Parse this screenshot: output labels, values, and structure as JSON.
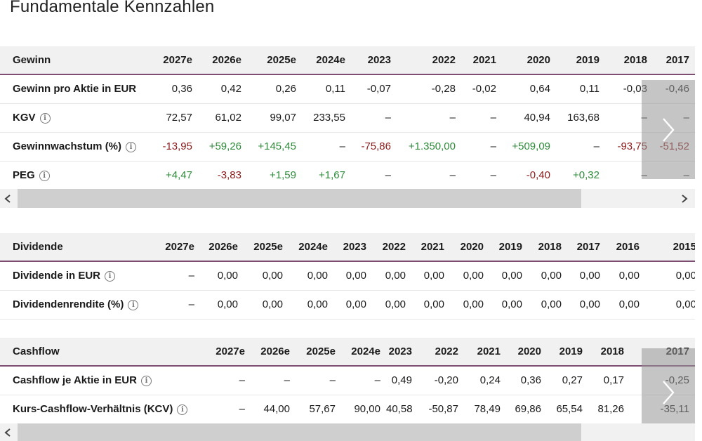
{
  "page": {
    "title": "Fundamentale Kennzahlen"
  },
  "gewinn": {
    "header": [
      "Gewinn",
      "2027e",
      "2026e",
      "2025e",
      "2024e",
      "2023",
      "2022",
      "2021",
      "2020",
      "2019",
      "2018",
      "2017"
    ],
    "rows": [
      {
        "label": "Gewinn pro Aktie in EUR",
        "info": false,
        "cells": [
          [
            "0,36",
            "neu"
          ],
          [
            "0,42",
            "neu"
          ],
          [
            "0,26",
            "neu"
          ],
          [
            "0,11",
            "neu"
          ],
          [
            "-0,07",
            "neu"
          ],
          [
            "-0,28",
            "neu"
          ],
          [
            "-0,02",
            "neu"
          ],
          [
            "0,64",
            "neu"
          ],
          [
            "0,11",
            "neu"
          ],
          [
            "-0,03",
            "neu"
          ],
          [
            "-0,46",
            "neu"
          ]
        ]
      },
      {
        "label": "KGV",
        "info": true,
        "cells": [
          [
            "72,57",
            "neu"
          ],
          [
            "61,02",
            "neu"
          ],
          [
            "99,07",
            "neu"
          ],
          [
            "233,55",
            "neu"
          ],
          [
            "–",
            "neu"
          ],
          [
            "–",
            "neu"
          ],
          [
            "–",
            "neu"
          ],
          [
            "40,94",
            "neu"
          ],
          [
            "163,68",
            "neu"
          ],
          [
            "–",
            "neu"
          ],
          [
            "–",
            "neu"
          ]
        ]
      },
      {
        "label": "Gewinnwachstum (%)",
        "info": true,
        "cells": [
          [
            "-13,95",
            "neg"
          ],
          [
            "+59,26",
            "pos"
          ],
          [
            "+145,45",
            "pos"
          ],
          [
            "–",
            "neu"
          ],
          [
            "-75,86",
            "neg"
          ],
          [
            "+1.350,00",
            "pos"
          ],
          [
            "–",
            "neu"
          ],
          [
            "+509,09",
            "pos"
          ],
          [
            "–",
            "neu"
          ],
          [
            "-93,75",
            "neg"
          ],
          [
            "-51,52",
            "neg"
          ]
        ]
      },
      {
        "label": "PEG",
        "info": true,
        "cells": [
          [
            "+4,47",
            "pos"
          ],
          [
            "-3,83",
            "neg"
          ],
          [
            "+1,59",
            "pos"
          ],
          [
            "+1,67",
            "pos"
          ],
          [
            "–",
            "neu"
          ],
          [
            "–",
            "neu"
          ],
          [
            "–",
            "neu"
          ],
          [
            "-0,40",
            "neg"
          ],
          [
            "+0,32",
            "pos"
          ],
          [
            "–",
            "neu"
          ],
          [
            "–",
            "neu"
          ]
        ]
      }
    ]
  },
  "dividende": {
    "header": [
      "Dividende",
      "2027e",
      "2026e",
      "2025e",
      "2024e",
      "2023",
      "2022",
      "2021",
      "2020",
      "2019",
      "2018",
      "2017",
      "2016",
      "2015"
    ],
    "rows": [
      {
        "label": "Dividende in EUR",
        "info": true,
        "cells": [
          [
            "–",
            "neu"
          ],
          [
            "0,00",
            "neu"
          ],
          [
            "0,00",
            "neu"
          ],
          [
            "0,00",
            "neu"
          ],
          [
            "0,00",
            "neu"
          ],
          [
            "0,00",
            "neu"
          ],
          [
            "0,00",
            "neu"
          ],
          [
            "0,00",
            "neu"
          ],
          [
            "0,00",
            "neu"
          ],
          [
            "0,00",
            "neu"
          ],
          [
            "0,00",
            "neu"
          ],
          [
            "0,00",
            "neu"
          ],
          [
            "0,00",
            "neu"
          ]
        ]
      },
      {
        "label": "Dividendenrendite (%)",
        "info": true,
        "cells": [
          [
            "–",
            "neu"
          ],
          [
            "0,00",
            "neu"
          ],
          [
            "0,00",
            "neu"
          ],
          [
            "0,00",
            "neu"
          ],
          [
            "0,00",
            "neu"
          ],
          [
            "0,00",
            "neu"
          ],
          [
            "0,00",
            "neu"
          ],
          [
            "0,00",
            "neu"
          ],
          [
            "0,00",
            "neu"
          ],
          [
            "0,00",
            "neu"
          ],
          [
            "0,00",
            "neu"
          ],
          [
            "0,00",
            "neu"
          ],
          [
            "0,00",
            "neu"
          ]
        ]
      }
    ]
  },
  "cashflow": {
    "header": [
      "Cashflow",
      "2027e",
      "2026e",
      "2025e",
      "2024e",
      "2023",
      "2022",
      "2021",
      "2020",
      "2019",
      "2018",
      "2017"
    ],
    "rows": [
      {
        "label": "Cashflow je Aktie in EUR",
        "info": true,
        "cells": [
          [
            "–",
            "neu"
          ],
          [
            "–",
            "neu"
          ],
          [
            "–",
            "neu"
          ],
          [
            "–",
            "neu"
          ],
          [
            "0,49",
            "neu"
          ],
          [
            "-0,20",
            "neu"
          ],
          [
            "0,24",
            "neu"
          ],
          [
            "0,36",
            "neu"
          ],
          [
            "0,27",
            "neu"
          ],
          [
            "0,17",
            "neu"
          ],
          [
            "-0,25",
            "neu"
          ]
        ]
      },
      {
        "label": "Kurs-Cashflow-Verhältnis (KCV)",
        "info": true,
        "cells": [
          [
            "–",
            "neu"
          ],
          [
            "44,00",
            "neu"
          ],
          [
            "57,67",
            "neu"
          ],
          [
            "90,00",
            "neu"
          ],
          [
            "40,58",
            "neu"
          ],
          [
            "-50,87",
            "neu"
          ],
          [
            "78,49",
            "neu"
          ],
          [
            "69,86",
            "neu"
          ],
          [
            "65,54",
            "neu"
          ],
          [
            "81,26",
            "neu"
          ],
          [
            "-35,11",
            "neu"
          ]
        ]
      }
    ]
  },
  "icons": {
    "info": "info-icon",
    "next": "chevron-right-icon",
    "scroll_left": "scroll-left-icon",
    "scroll_right": "scroll-right-icon"
  },
  "glyphs": {
    "info": "i"
  },
  "colors": {
    "positive": "#2e8b3a",
    "negative": "#8b1a1a",
    "header_underline": "#7d4d72"
  }
}
